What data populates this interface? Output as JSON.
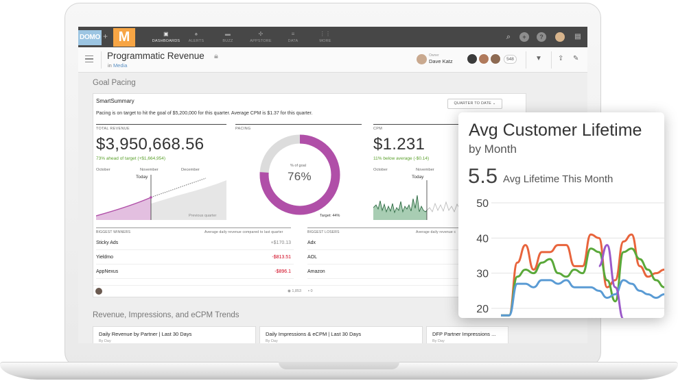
{
  "nav": {
    "brand_left": "DOMO",
    "brand_right": "M",
    "items": [
      {
        "label": "DASHBOARDS",
        "icon": "dashboards-icon"
      },
      {
        "label": "ALERTS",
        "icon": "bell-icon"
      },
      {
        "label": "BUZZ",
        "icon": "chat-icon"
      },
      {
        "label": "APPSTORE",
        "icon": "appstore-icon"
      },
      {
        "label": "DATA",
        "icon": "database-icon"
      },
      {
        "label": "MORE",
        "icon": "grid-icon"
      }
    ]
  },
  "header": {
    "title": "Programmatic Revenue",
    "in_prefix": "in",
    "in_link": "Media",
    "owner_label": "Owner",
    "owner_name": "Dave Katz",
    "members_count": "548"
  },
  "goal_pacing": {
    "section_title": "Goal Pacing",
    "card_title": "SmartSummary",
    "summary": "Pacing is on target to hit the goal of $5,200,000 for this quarter. Average CPM is $1.37 for this quarter.",
    "period_button": "QUARTER TO DATE",
    "total_revenue": {
      "label": "TOTAL REVENUE",
      "value": "$3,950,668.56",
      "delta": "73% ahead of target (+$1,664,954)",
      "months": [
        "October",
        "November",
        "December"
      ],
      "today": "Today",
      "previous": "Previous quarter"
    },
    "pacing": {
      "label": "PACING",
      "center_label": "% of goal",
      "value": "76%",
      "percent": 76,
      "target": "Target: 44%"
    },
    "cpm": {
      "label": "CPM",
      "value": "$1.231",
      "delta": "11% below average (-$0.14)",
      "months": [
        "October",
        "November"
      ],
      "today": "Today"
    },
    "winners": {
      "title": "BIGGEST WINNERS",
      "note": "Average daily revenue compared to last quarter",
      "rows": [
        {
          "name": "Sticky Ads",
          "value": "+$170.13"
        },
        {
          "name": "Yieldmo",
          "value": "-$813.51"
        },
        {
          "name": "AppNexus",
          "value": "-$896.1"
        }
      ]
    },
    "losers": {
      "title": "BIGGEST LOSERS",
      "note": "Average daily revenue c",
      "rows": [
        {
          "name": "Adx"
        },
        {
          "name": "AOL"
        },
        {
          "name": "Amazon"
        }
      ]
    },
    "views": "1,853",
    "comments": "0"
  },
  "trends": {
    "section_title": "Revenue, Impressions, and eCPM Trends",
    "cards": [
      {
        "title": "Daily Revenue by Partner | Last 30 Days",
        "sub": "By Day"
      },
      {
        "title": "Daily Impressions & eCPM | Last 30 Days",
        "sub": "By Day"
      },
      {
        "title": "DFP Partner Impressions ...",
        "sub": "By Day"
      }
    ]
  },
  "overlay": {
    "title": "Avg Customer Lifetime",
    "subtitle": "by Month",
    "value": "5.5",
    "value_label": "Avg Lifetime This Month",
    "chart_data": {
      "type": "line",
      "y_ticks": [
        "50",
        "40",
        "30",
        "20"
      ],
      "ylim": [
        18,
        52
      ],
      "colors": [
        "#e8643c",
        "#5aa83a",
        "#5a9bd4",
        "#9b59c9"
      ],
      "series": [
        {
          "values": [
            18,
            18,
            33,
            38,
            31,
            36,
            36,
            38,
            38,
            32,
            32,
            41,
            40,
            26,
            28,
            39,
            41,
            32,
            29,
            30,
            31
          ]
        },
        {
          "values": [
            18,
            18,
            29,
            31,
            30,
            33,
            34,
            30,
            29,
            31,
            30,
            37,
            36,
            28,
            22,
            36,
            37,
            34,
            31,
            28,
            26
          ]
        },
        {
          "values": [
            18,
            18,
            27,
            27,
            26,
            28,
            28,
            27,
            28,
            26,
            26,
            26,
            25,
            23,
            24,
            28,
            27,
            25,
            24,
            23,
            24
          ]
        },
        {
          "values": [
            null,
            null,
            null,
            null,
            null,
            null,
            null,
            null,
            null,
            null,
            null,
            null,
            32,
            38,
            26,
            17,
            null,
            null,
            null,
            null,
            null
          ]
        }
      ]
    }
  }
}
